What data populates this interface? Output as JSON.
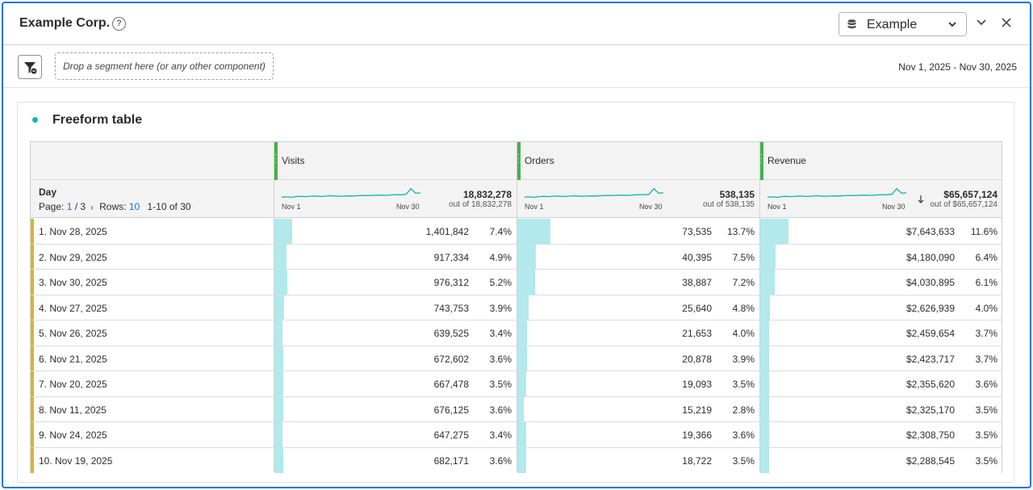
{
  "header": {
    "title": "Example Corp.",
    "help_glyph": "?",
    "data_source": "Example"
  },
  "segment_bar": {
    "dropzone_text": "Drop a segment here (or any other component)",
    "date_range": "Nov 1, 2025 - Nov 30, 2025"
  },
  "panel": {
    "viz_title": "Freeform table",
    "accent_color": "#12b5b0",
    "bar_color": "#b1e9ec",
    "metric_grip_color": "#47b04b",
    "row_marker_color": "#d7b530"
  },
  "table": {
    "dimension": "Day",
    "pager": {
      "page_label": "Page:",
      "page": "1",
      "pages": "/ 3",
      "rows_label": "Rows:",
      "rows": "10",
      "range": "1-10 of 30"
    },
    "columns": [
      {
        "name": "Visits",
        "total": "18,832,278",
        "total_sub": "out of 18,832,278",
        "spark_start": "Nov 1",
        "spark_end": "Nov 30",
        "sorted": false
      },
      {
        "name": "Orders",
        "total": "538,135",
        "total_sub": "out of 538,135",
        "spark_start": "Nov 1",
        "spark_end": "Nov 30",
        "sorted": false
      },
      {
        "name": "Revenue",
        "total": "$65,657,124",
        "total_sub": "out of $65,657,124",
        "spark_start": "Nov 1",
        "spark_end": "Nov 30",
        "sorted": true
      }
    ],
    "rows": [
      {
        "label": "1.  Nov 28, 2025",
        "cells": [
          {
            "value": "1,401,842",
            "pct": "7.4%",
            "frac": 0.074
          },
          {
            "value": "73,535",
            "pct": "13.7%",
            "frac": 0.137
          },
          {
            "value": "$7,643,633",
            "pct": "11.6%",
            "frac": 0.116
          }
        ]
      },
      {
        "label": "2.  Nov 29, 2025",
        "cells": [
          {
            "value": "917,334",
            "pct": "4.9%",
            "frac": 0.049
          },
          {
            "value": "40,395",
            "pct": "7.5%",
            "frac": 0.075
          },
          {
            "value": "$4,180,090",
            "pct": "6.4%",
            "frac": 0.064
          }
        ]
      },
      {
        "label": "3.  Nov 30, 2025",
        "cells": [
          {
            "value": "976,312",
            "pct": "5.2%",
            "frac": 0.052
          },
          {
            "value": "38,887",
            "pct": "7.2%",
            "frac": 0.072
          },
          {
            "value": "$4,030,895",
            "pct": "6.1%",
            "frac": 0.061
          }
        ]
      },
      {
        "label": "4.  Nov 27, 2025",
        "cells": [
          {
            "value": "743,753",
            "pct": "3.9%",
            "frac": 0.039
          },
          {
            "value": "25,640",
            "pct": "4.8%",
            "frac": 0.048
          },
          {
            "value": "$2,626,939",
            "pct": "4.0%",
            "frac": 0.04
          }
        ]
      },
      {
        "label": "5.  Nov 26, 2025",
        "cells": [
          {
            "value": "639,525",
            "pct": "3.4%",
            "frac": 0.034
          },
          {
            "value": "21,653",
            "pct": "4.0%",
            "frac": 0.04
          },
          {
            "value": "$2,459,654",
            "pct": "3.7%",
            "frac": 0.037
          }
        ]
      },
      {
        "label": "6.  Nov 21, 2025",
        "cells": [
          {
            "value": "672,602",
            "pct": "3.6%",
            "frac": 0.036
          },
          {
            "value": "20,878",
            "pct": "3.9%",
            "frac": 0.039
          },
          {
            "value": "$2,423,717",
            "pct": "3.7%",
            "frac": 0.037
          }
        ]
      },
      {
        "label": "7.  Nov 20, 2025",
        "cells": [
          {
            "value": "667,478",
            "pct": "3.5%",
            "frac": 0.035
          },
          {
            "value": "19,093",
            "pct": "3.5%",
            "frac": 0.035
          },
          {
            "value": "$2,355,620",
            "pct": "3.6%",
            "frac": 0.036
          }
        ]
      },
      {
        "label": "8.  Nov 11, 2025",
        "cells": [
          {
            "value": "676,125",
            "pct": "3.6%",
            "frac": 0.036
          },
          {
            "value": "15,219",
            "pct": "2.8%",
            "frac": 0.028
          },
          {
            "value": "$2,325,170",
            "pct": "3.5%",
            "frac": 0.035
          }
        ]
      },
      {
        "label": "9.  Nov 24, 2025",
        "cells": [
          {
            "value": "647,275",
            "pct": "3.4%",
            "frac": 0.034
          },
          {
            "value": "19,366",
            "pct": "3.6%",
            "frac": 0.036
          },
          {
            "value": "$2,308,750",
            "pct": "3.5%",
            "frac": 0.035
          }
        ]
      },
      {
        "label": "10.  Nov 19, 2025",
        "cells": [
          {
            "value": "682,171",
            "pct": "3.6%",
            "frac": 0.036
          },
          {
            "value": "18,722",
            "pct": "3.5%",
            "frac": 0.035
          },
          {
            "value": "$2,288,545",
            "pct": "3.5%",
            "frac": 0.035
          }
        ]
      }
    ]
  }
}
